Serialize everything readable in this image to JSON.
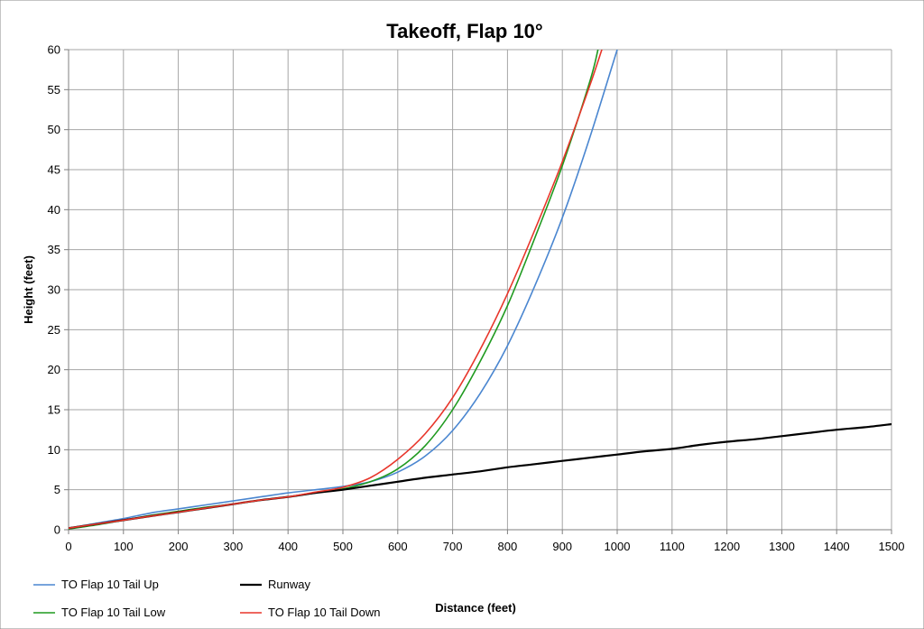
{
  "chart_data": {
    "type": "line",
    "title": "Takeoff, Flap 10°",
    "xlabel": "Distance (feet)",
    "ylabel": "Height (feet)",
    "xlim": [
      0,
      1500
    ],
    "ylim": [
      0,
      60
    ],
    "xticks": [
      0,
      100,
      200,
      300,
      400,
      500,
      600,
      700,
      800,
      900,
      1000,
      1100,
      1200,
      1300,
      1400,
      1500
    ],
    "yticks": [
      0,
      5,
      10,
      15,
      20,
      25,
      30,
      35,
      40,
      45,
      50,
      55,
      60
    ],
    "grid": true,
    "legend_position": "bottom",
    "series": [
      {
        "name": "TO Flap 10 Tail Up",
        "color": "#4a86d0",
        "x": [
          0,
          50,
          100,
          150,
          200,
          250,
          300,
          350,
          400,
          450,
          500,
          550,
          600,
          650,
          700,
          750,
          800,
          850,
          900,
          950,
          1000
        ],
        "y": [
          0.2,
          0.8,
          1.4,
          2.1,
          2.6,
          3.1,
          3.6,
          4.1,
          4.6,
          5.0,
          5.4,
          6.0,
          7.2,
          9.2,
          12.4,
          17.0,
          23.0,
          30.5,
          39.0,
          49.0,
          60.0
        ]
      },
      {
        "name": "TO Flap 10 Tail Low",
        "color": "#1f9a1f",
        "x": [
          0,
          50,
          100,
          150,
          200,
          250,
          300,
          350,
          400,
          450,
          500,
          550,
          600,
          650,
          700,
          750,
          800,
          850,
          900,
          950,
          965
        ],
        "y": [
          0.1,
          0.6,
          1.2,
          1.8,
          2.3,
          2.8,
          3.2,
          3.7,
          4.1,
          4.6,
          5.1,
          6.0,
          7.6,
          10.5,
          15.0,
          21.0,
          28.0,
          36.5,
          45.5,
          56.0,
          60.0
        ]
      },
      {
        "name": "Runway",
        "color": "#000000",
        "x": [
          0,
          50,
          100,
          150,
          200,
          250,
          300,
          350,
          400,
          450,
          500,
          550,
          600,
          650,
          700,
          750,
          800,
          850,
          900,
          950,
          1000,
          1050,
          1100,
          1150,
          1200,
          1250,
          1300,
          1350,
          1400,
          1450,
          1500
        ],
        "y": [
          0.2,
          0.7,
          1.2,
          1.7,
          2.2,
          2.7,
          3.2,
          3.7,
          4.1,
          4.6,
          5.0,
          5.5,
          6.0,
          6.5,
          6.9,
          7.3,
          7.8,
          8.2,
          8.6,
          9.0,
          9.4,
          9.8,
          10.1,
          10.6,
          11.0,
          11.3,
          11.7,
          12.1,
          12.5,
          12.8,
          13.2
        ]
      },
      {
        "name": "TO Flap 10 Tail Down",
        "color": "#e8352a",
        "x": [
          0,
          50,
          100,
          150,
          200,
          250,
          300,
          350,
          400,
          450,
          500,
          550,
          600,
          650,
          700,
          750,
          800,
          850,
          900,
          950,
          972
        ],
        "y": [
          0.2,
          0.7,
          1.2,
          1.7,
          2.2,
          2.7,
          3.2,
          3.7,
          4.1,
          4.7,
          5.3,
          6.5,
          8.8,
          12.0,
          16.5,
          22.5,
          29.5,
          37.5,
          46.0,
          55.5,
          60.0
        ]
      }
    ]
  }
}
